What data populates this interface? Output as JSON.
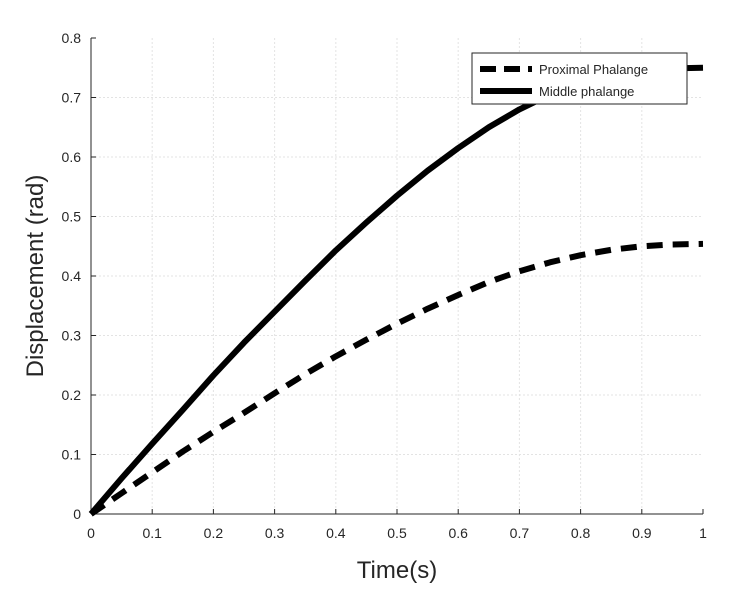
{
  "chart_data": {
    "type": "line",
    "xlabel": "Time(s)",
    "ylabel": "Displacement (rad)",
    "xlim": [
      0,
      1
    ],
    "ylim": [
      0,
      0.8
    ],
    "x_ticks": [
      "0",
      "0.1",
      "0.2",
      "0.3",
      "0.4",
      "0.5",
      "0.6",
      "0.7",
      "0.8",
      "0.9",
      "1"
    ],
    "y_ticks": [
      "0",
      "0.1",
      "0.2",
      "0.3",
      "0.4",
      "0.5",
      "0.6",
      "0.7",
      "0.8"
    ],
    "grid": true,
    "legend_position": "top-right",
    "x": [
      0,
      0.05,
      0.1,
      0.15,
      0.2,
      0.25,
      0.3,
      0.35,
      0.4,
      0.45,
      0.5,
      0.55,
      0.6,
      0.65,
      0.7,
      0.75,
      0.8,
      0.85,
      0.9,
      0.95,
      1.0
    ],
    "series": [
      {
        "name": "Proximal Phalange",
        "line_style": "dashed",
        "color": "#000000",
        "values": [
          0,
          0.035,
          0.07,
          0.105,
          0.138,
          0.17,
          0.203,
          0.235,
          0.265,
          0.293,
          0.32,
          0.345,
          0.368,
          0.39,
          0.408,
          0.423,
          0.435,
          0.444,
          0.45,
          0.453,
          0.454
        ]
      },
      {
        "name": "Middle phalange",
        "line_style": "solid",
        "color": "#000000",
        "values": [
          0,
          0.06,
          0.118,
          0.175,
          0.233,
          0.288,
          0.34,
          0.392,
          0.443,
          0.49,
          0.535,
          0.577,
          0.615,
          0.65,
          0.68,
          0.705,
          0.725,
          0.738,
          0.746,
          0.749,
          0.75
        ]
      }
    ]
  }
}
